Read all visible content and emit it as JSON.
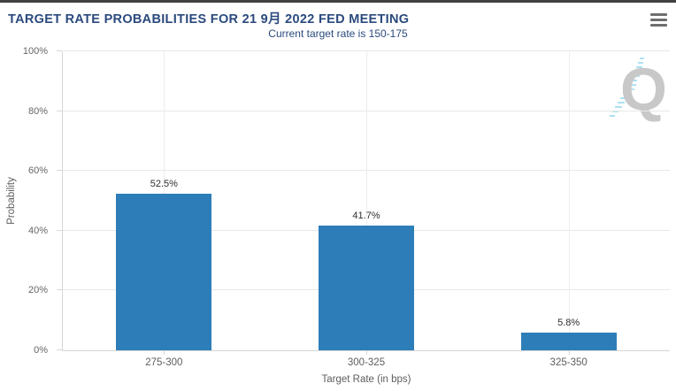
{
  "header": {
    "title": "TARGET RATE PROBABILITIES FOR 21 9月 2022 FED MEETING",
    "title_color": "#2b4a7d",
    "menu_icon": "hamburger-icon"
  },
  "subtitle": "Current target rate is 150-175",
  "watermark_icon": "quandl-q-logo",
  "chart_data": {
    "type": "bar",
    "title": "TARGET RATE PROBABILITIES FOR 21 9月 2022 FED MEETING",
    "subtitle": "Current target rate is 150-175",
    "categories": [
      "275-300",
      "300-325",
      "325-350"
    ],
    "values": [
      52.5,
      41.7,
      5.8
    ],
    "value_labels": [
      "52.5%",
      "41.7%",
      "5.8%"
    ],
    "xlabel": "Target Rate (in bps)",
    "ylabel": "Probability",
    "ylim": [
      0,
      100
    ],
    "y_ticks": [
      "0%",
      "20%",
      "40%",
      "60%",
      "80%",
      "100%"
    ],
    "grid": true,
    "legend_position": "none",
    "bar_color": "#2d7eb8"
  }
}
